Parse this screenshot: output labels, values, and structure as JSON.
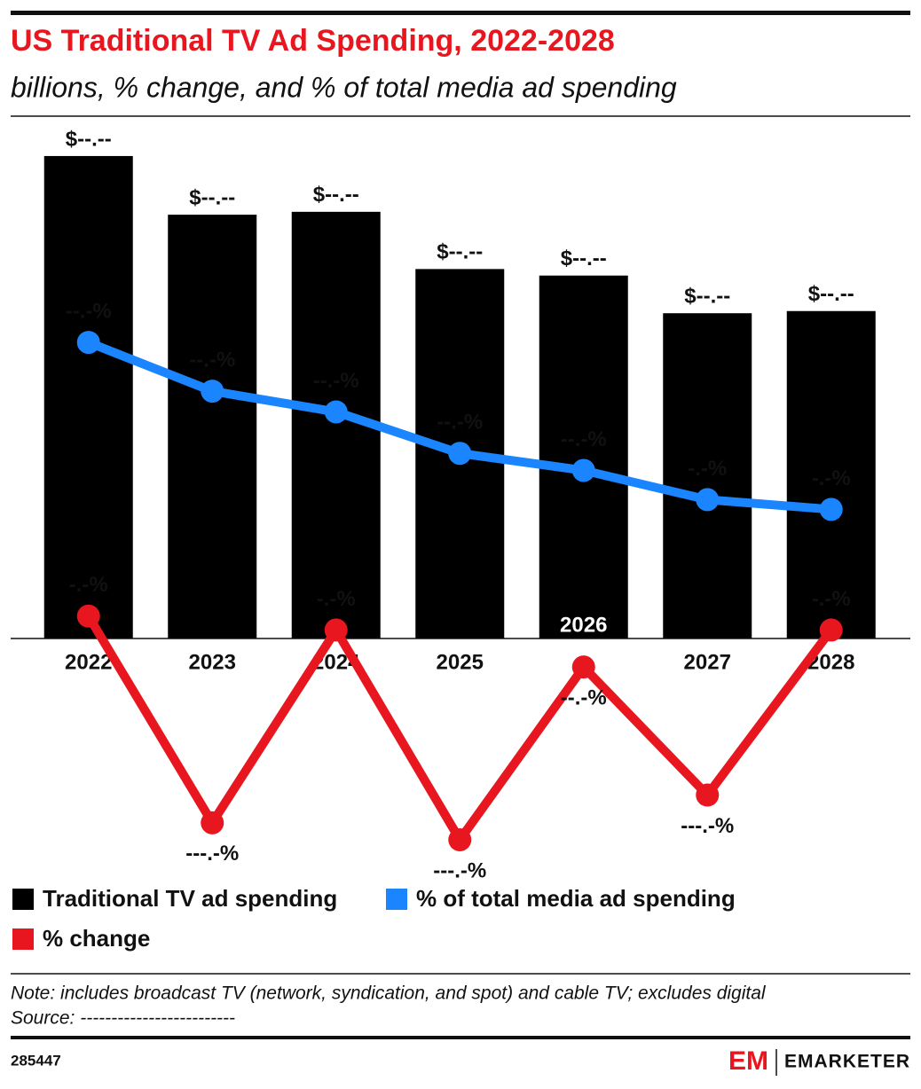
{
  "chart_data": {
    "type": "bar",
    "title": "US Traditional TV Ad Spending, 2022-2028",
    "subtitle": "billions, % change, and % of total media ad spending",
    "categories": [
      "2022",
      "2023",
      "2024",
      "2025",
      "2026",
      "2027",
      "2028"
    ],
    "ylim": [
      0,
      71
    ],
    "y2lim": [
      -20.5,
      40.6
    ],
    "y3lim": [
      -15.2,
      33.1
    ],
    "series": [
      {
        "name": "Traditional TV ad spending",
        "type": "bar",
        "color": "#000000",
        "values": [
          66.6,
          58.5,
          58.9,
          51.0,
          50.1,
          44.9,
          45.2
        ],
        "value_labels": [
          "$--.--",
          "$--.--",
          "$--.--",
          "$--.--",
          "$--.--",
          "$--.--",
          "$--.--"
        ]
      },
      {
        "name": "% of total media ad spending",
        "type": "line",
        "axis": "y2",
        "color": "#1a85ff",
        "values": [
          22.7,
          18.7,
          17.0,
          13.6,
          12.2,
          9.8,
          9.0
        ],
        "value_labels": [
          "--.-%",
          "--.-%",
          "--.-%",
          "--.-%",
          "--.-%",
          "-.-%",
          "-.-%"
        ]
      },
      {
        "name": "% change",
        "type": "line",
        "axis": "y3",
        "color": "#e8171f",
        "values": [
          1.2,
          -12.2,
          0.3,
          -13.3,
          -2.1,
          -10.4,
          0.3
        ],
        "value_labels": [
          "-.-%",
          "---.-%",
          "-.-%",
          "---.-%",
          "--.-%",
          "---.-%",
          "-.-%"
        ]
      }
    ]
  },
  "footer": {
    "note": "Note: includes broadcast TV (network, syndication, and spot) and cable TV; excludes digital",
    "source": "Source: -------------------------",
    "chart_id": "285447",
    "logo_mark": "EM",
    "logo": "EMARKETER"
  }
}
